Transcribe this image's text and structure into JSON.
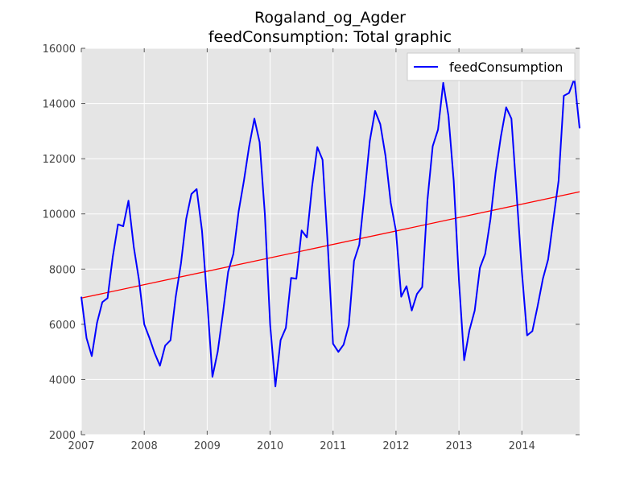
{
  "chart_data": {
    "type": "line",
    "title": "Rogaland_og_Agder",
    "subtitle": "feedConsumption: Total graphic",
    "xlabel": "",
    "ylabel": "",
    "xlim": [
      2007.0,
      2014.917
    ],
    "ylim": [
      2000,
      16000
    ],
    "x_ticks": [
      2007,
      2008,
      2009,
      2010,
      2011,
      2012,
      2013,
      2014
    ],
    "x_tick_labels": [
      "2007",
      "2008",
      "2009",
      "2010",
      "2011",
      "2012",
      "2013",
      "2014"
    ],
    "y_ticks": [
      2000,
      4000,
      6000,
      8000,
      10000,
      12000,
      14000,
      16000
    ],
    "y_tick_labels": [
      "2000",
      "4000",
      "6000",
      "8000",
      "10000",
      "12000",
      "14000",
      "16000"
    ],
    "grid": true,
    "legend": {
      "position": "top-right",
      "entries": [
        "feedConsumption"
      ]
    },
    "x_start": "2007-01",
    "x_step": "month",
    "series": [
      {
        "name": "feedConsumption",
        "color": "#0000ff",
        "values": [
          7000,
          5500,
          4850,
          6050,
          6800,
          6950,
          8450,
          9620,
          9550,
          10480,
          8800,
          7600,
          6000,
          5500,
          4950,
          4500,
          5230,
          5420,
          7000,
          8200,
          9820,
          10720,
          10900,
          9400,
          6850,
          4100,
          5000,
          6400,
          7900,
          8550,
          10100,
          11200,
          12450,
          13450,
          12600,
          10000,
          5980,
          3750,
          5430,
          5870,
          7680,
          7650,
          9400,
          9150,
          11000,
          12420,
          11960,
          8850,
          5300,
          5000,
          5260,
          5970,
          8300,
          8880,
          10700,
          12650,
          13730,
          13250,
          12100,
          10400,
          9380,
          7000,
          7380,
          6500,
          7100,
          7350,
          10500,
          12450,
          13050,
          14750,
          13550,
          11200,
          7600,
          4700,
          5780,
          6500,
          8050,
          8550,
          9800,
          11500,
          12800,
          13860,
          13450,
          10700,
          7900,
          5600,
          5750,
          6650,
          7650,
          8350,
          9800,
          11200,
          14280,
          14380,
          14900,
          13100
        ]
      }
    ],
    "trend_line": {
      "color": "#ff0000",
      "x": [
        2007.0,
        2014.917
      ],
      "y": [
        6950,
        10800
      ]
    }
  }
}
